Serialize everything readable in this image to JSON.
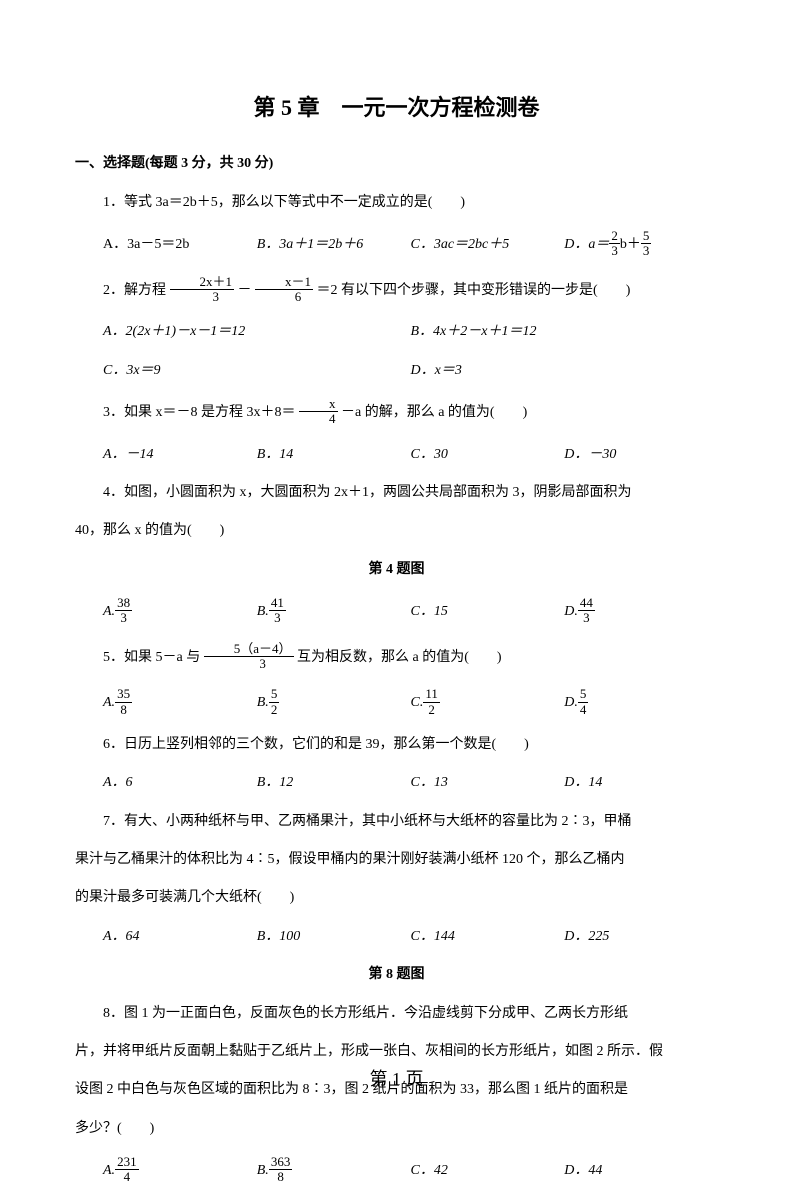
{
  "title": "第 5 章　一元一次方程检测卷",
  "section1": "一、选择题(每题 3 分，共 30 分)",
  "q1": {
    "text": "1．等式 3a＝2b＋5，那么以下等式中不一定成立的是(　　)",
    "A": "A．3a－5＝2b",
    "B": "B．3a＋1＝2b＋6",
    "C": "C．3ac＝2bc＋5",
    "D_pre": "D．a＝",
    "D_f1n": "2",
    "D_f1d": "3",
    "D_mid": "b＋",
    "D_f2n": "5",
    "D_f2d": "3"
  },
  "q2": {
    "pre": "2．解方程",
    "f1n": "2x＋1",
    "f1d": "3",
    "mid1": "－",
    "f2n": "x－1",
    "f2d": "6",
    "post": "＝2 有以下四个步骤，其中变形错误的一步是(　　)",
    "A": "A．2(2x＋1)－x－1＝12",
    "B": "B．4x＋2－x＋1＝12",
    "C": "C．3x＝9",
    "D": "D．x＝3"
  },
  "q3": {
    "pre": "3．如果 x＝－8 是方程 3x＋8＝",
    "fn": "x",
    "fd": "4",
    "post": "－a 的解，那么 a 的值为(　　)",
    "A": "A．－14",
    "B": "B．14",
    "C": "C．30",
    "D": "D．－30"
  },
  "q4": {
    "line1": "4．如图，小圆面积为 x，大圆面积为 2x＋1，两圆公共局部面积为 3，阴影局部面积为",
    "line2": "40，那么 x 的值为(　　)",
    "caption": "第 4 题图",
    "A_pre": "A.",
    "A_n": "38",
    "A_d": "3",
    "B_pre": "B.",
    "B_n": "41",
    "B_d": "3",
    "C": "C．15",
    "D_pre": "D.",
    "D_n": "44",
    "D_d": "3"
  },
  "q5": {
    "pre": "5．如果 5－a 与",
    "fn": "5（a－4）",
    "fd": "3",
    "post": "互为相反数，那么 a 的值为(　　)",
    "A_pre": "A.",
    "A_n": "35",
    "A_d": "8",
    "B_pre": "B.",
    "B_n": "5",
    "B_d": "2",
    "C_pre": "C.",
    "C_n": "11",
    "C_d": "2",
    "D_pre": "D.",
    "D_n": "5",
    "D_d": "4"
  },
  "q6": {
    "text": "6．日历上竖列相邻的三个数，它们的和是 39，那么第一个数是(　　)",
    "A": "A．6",
    "B": "B．12",
    "C": "C．13",
    "D": "D．14"
  },
  "q7": {
    "line1": "7．有大、小两种纸杯与甲、乙两桶果汁，其中小纸杯与大纸杯的容量比为 2∶3，甲桶",
    "line2": "果汁与乙桶果汁的体积比为 4∶5，假设甲桶内的果汁刚好装满小纸杯 120 个，那么乙桶内",
    "line3": "的果汁最多可装满几个大纸杯(　　)",
    "A": "A．64",
    "B": "B．100",
    "C": "C．144",
    "D": "D．225"
  },
  "caption8": "第 8 题图",
  "q8": {
    "line1": "8．图 1 为一正面白色，反面灰色的长方形纸片．今沿虚线剪下分成甲、乙两长方形纸",
    "line2": "片，并将甲纸片反面朝上黏贴于乙纸片上，形成一张白、灰相间的长方形纸片，如图 2 所示．假",
    "line3": "设图 2 中白色与灰色区域的面积比为 8∶3，图 2 纸片的面积为 33，那么图 1 纸片的面积是",
    "line4": "多少？(　　)",
    "A_pre": "A.",
    "A_n": "231",
    "A_d": "4",
    "B_pre": "B.",
    "B_n": "363",
    "B_d": "8",
    "C": "C．42",
    "D": "D．44"
  },
  "footer": "第  1  页"
}
